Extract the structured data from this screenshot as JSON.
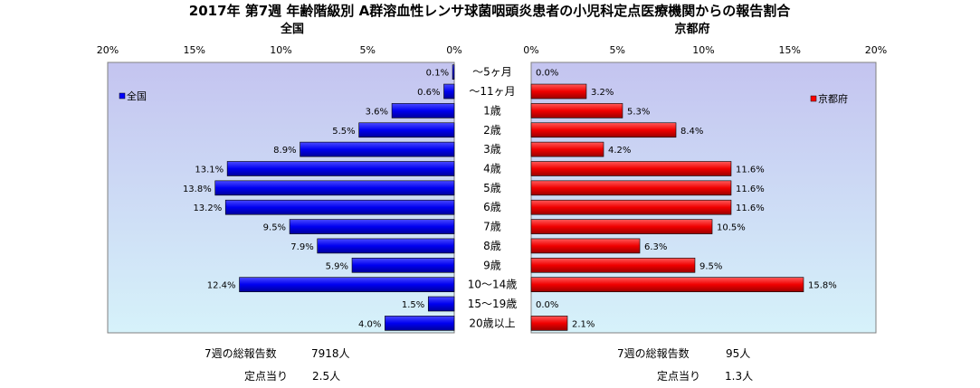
{
  "chart_data": {
    "type": "bar",
    "title": "2017年 第7週 年齢階級別 A群溶血性レンサ球菌咽頭炎患者の小児科定点医療機関からの報告割合",
    "categories": [
      "～5ヶ月",
      "～11ヶ月",
      "1歳",
      "2歳",
      "3歳",
      "4歳",
      "5歳",
      "6歳",
      "7歳",
      "8歳",
      "9歳",
      "10～14歳",
      "15～19歳",
      "20歳以上"
    ],
    "xlim": [
      0,
      20
    ],
    "ticks": [
      "20%",
      "15%",
      "10%",
      "5%",
      "0%",
      "0%",
      "5%",
      "10%",
      "15%",
      "20%"
    ],
    "legend_placement": "inside-top",
    "series": [
      {
        "name": "全国",
        "panel_title": "全国",
        "legend": "全国",
        "color": "#0000ff",
        "values": [
          0.1,
          0.6,
          3.6,
          5.5,
          8.9,
          13.1,
          13.8,
          13.2,
          9.5,
          7.9,
          5.9,
          12.4,
          1.5,
          4.0
        ],
        "labels": [
          "0.1%",
          "0.6%",
          "3.6%",
          "5.5%",
          "8.9%",
          "13.1%",
          "13.8%",
          "13.2%",
          "9.5%",
          "7.9%",
          "5.9%",
          "12.4%",
          "1.5%",
          "4.0%"
        ],
        "footer_total_label": "7週の総報告数",
        "footer_total_value": "7918人",
        "footer_per_label": "定点当り",
        "footer_per_value": "2.5人"
      },
      {
        "name": "京都府",
        "panel_title": "京都府",
        "legend": "京都府",
        "color": "#ff0000",
        "values": [
          0.0,
          3.2,
          5.3,
          8.4,
          4.2,
          11.6,
          11.6,
          11.6,
          10.5,
          6.3,
          9.5,
          15.8,
          0.0,
          2.1
        ],
        "labels": [
          "0.0%",
          "3.2%",
          "5.3%",
          "8.4%",
          "4.2%",
          "11.6%",
          "11.6%",
          "11.6%",
          "10.5%",
          "6.3%",
          "9.5%",
          "15.8%",
          "0.0%",
          "2.1%"
        ],
        "footer_total_label": "7週の総報告数",
        "footer_total_value": "95人",
        "footer_per_label": "定点当り",
        "footer_per_value": "1.3人"
      }
    ]
  }
}
